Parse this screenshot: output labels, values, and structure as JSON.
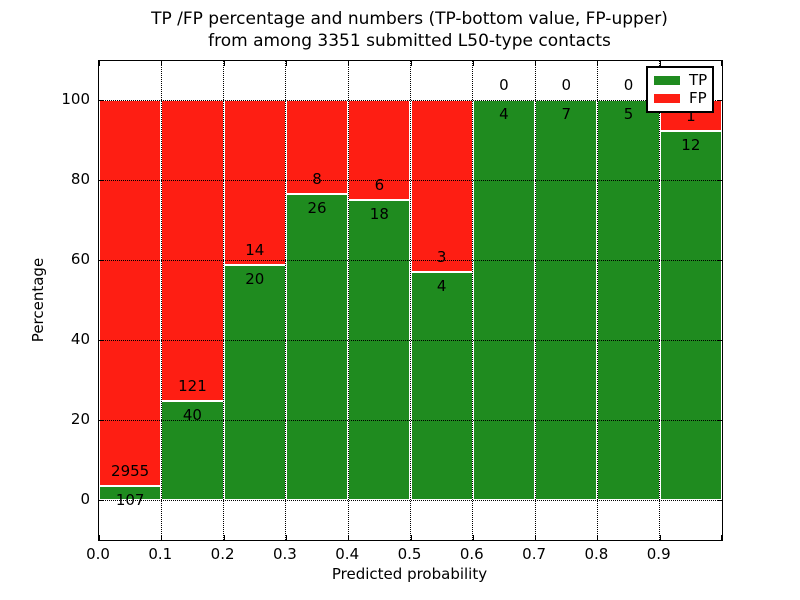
{
  "title": {
    "line1": "TP /FP percentage and numbers (TP-bottom value, FP-upper)",
    "line2": "from among 3351 submitted L50-type contacts"
  },
  "axes": {
    "xlabel": "Predicted probability",
    "ylabel": "Percentage",
    "xtick_labels": [
      "0.0",
      "0.1",
      "0.2",
      "0.3",
      "0.4",
      "0.5",
      "0.6",
      "0.7",
      "0.8",
      "0.9"
    ],
    "ytick_values": [
      0,
      20,
      40,
      60,
      80,
      100
    ],
    "xlim": [
      0.0,
      1.0
    ],
    "ylim": [
      -10,
      110
    ],
    "grid": true
  },
  "legend": {
    "position": "upper right",
    "items": [
      {
        "label": "TP",
        "color": "#1f8b1f"
      },
      {
        "label": "FP",
        "color": "#fe1e13"
      }
    ]
  },
  "colors": {
    "tp": "#1f8b1f",
    "fp": "#fe1e13",
    "text": "#000000",
    "background": "#ffffff",
    "bar_edge": "#ffffff",
    "grid": "#000000"
  },
  "chart_data": {
    "type": "bar",
    "stacked": true,
    "normalized": "each bin scaled to 100%",
    "title": "TP /FP percentage and numbers (TP-bottom value, FP-upper) from among 3351 submitted L50-type contacts",
    "xlabel": "Predicted probability",
    "ylabel": "Percentage",
    "bin_width": 0.1,
    "categories": [
      "0.0-0.1",
      "0.1-0.2",
      "0.2-0.3",
      "0.3-0.4",
      "0.4-0.5",
      "0.5-0.6",
      "0.6-0.7",
      "0.7-0.8",
      "0.8-0.9",
      "0.9-1.0"
    ],
    "series": [
      {
        "name": "TP",
        "color": "#1f8b1f",
        "values": [
          107,
          40,
          20,
          26,
          18,
          4,
          4,
          7,
          5,
          12
        ]
      },
      {
        "name": "FP",
        "color": "#fe1e13",
        "values": [
          2955,
          121,
          14,
          8,
          6,
          3,
          0,
          0,
          0,
          1
        ]
      }
    ],
    "tp_percent": [
      3.5,
      24.8,
      58.8,
      76.5,
      75.0,
      57.1,
      100.0,
      100.0,
      100.0,
      92.3
    ],
    "total_contacts": 3351,
    "legend_position": "upper right"
  }
}
